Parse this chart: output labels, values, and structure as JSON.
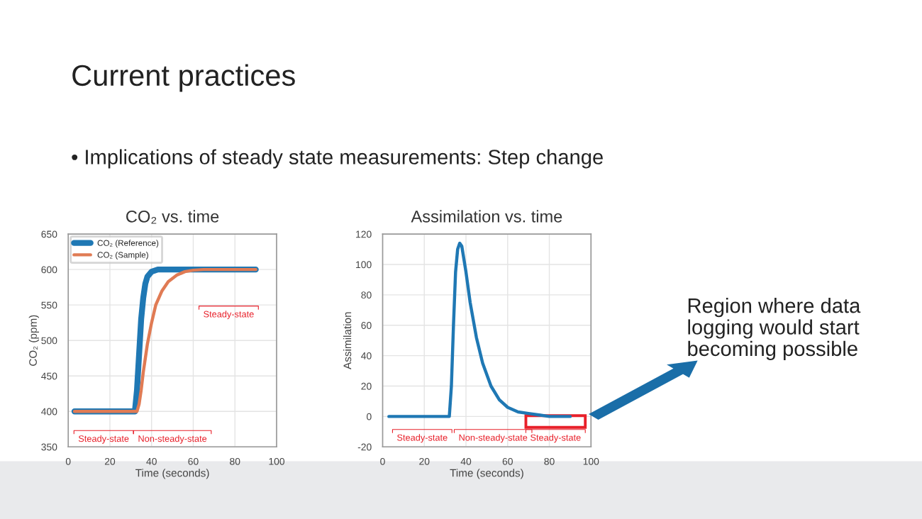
{
  "chart_data": [
    {
      "type": "line",
      "title": "CO₂ vs. time",
      "xlabel": "Time (seconds)",
      "ylabel": "CO₂ (ppm)",
      "xlim": [
        0,
        100
      ],
      "ylim": [
        350,
        650
      ],
      "xticks": [
        0,
        20,
        40,
        60,
        80,
        100
      ],
      "yticks": [
        350,
        400,
        450,
        500,
        550,
        600,
        650
      ],
      "grid": true,
      "legend": "top left",
      "series": [
        {
          "name": "CO₂ (Reference)",
          "color": "#1f78b4",
          "x": [
            3,
            32,
            33,
            34,
            35,
            36,
            37,
            38,
            40,
            43,
            90
          ],
          "values": [
            400,
            400,
            430,
            480,
            530,
            560,
            580,
            590,
            597,
            600,
            600
          ]
        },
        {
          "name": "CO₂ (Sample)",
          "color": "#e07b54",
          "x": [
            3,
            33,
            34,
            35,
            36,
            38,
            40,
            42,
            45,
            48,
            52,
            56,
            60,
            65,
            90
          ],
          "values": [
            400,
            400,
            410,
            430,
            455,
            495,
            525,
            550,
            570,
            583,
            592,
            597,
            599,
            600,
            600
          ]
        }
      ],
      "annotations": [
        "Current practices",
        "• Implications of steady state measurements: Step change",
        "Steady-state",
        "Non-steady-state",
        "Steady-state"
      ]
    },
    {
      "type": "line",
      "title": "Assimilation vs. time",
      "xlabel": "Time (seconds)",
      "ylabel": "Assimilation",
      "xlim": [
        0,
        100
      ],
      "ylim": [
        -20,
        120
      ],
      "xticks": [
        0,
        20,
        40,
        60,
        80,
        100
      ],
      "yticks": [
        -20,
        0,
        20,
        40,
        60,
        80,
        100,
        120
      ],
      "grid": true,
      "series": [
        {
          "color": "#1f78b4",
          "x": [
            3,
            32,
            33,
            34,
            35,
            36,
            37,
            38,
            40,
            42,
            45,
            48,
            52,
            56,
            60,
            65,
            70,
            75,
            80,
            90
          ],
          "values": [
            0,
            0,
            20,
            60,
            95,
            110,
            114,
            112,
            95,
            75,
            52,
            35,
            20,
            11,
            6,
            3,
            2,
            1,
            0,
            0
          ]
        }
      ],
      "annotations": [
        "Region where data\nlogging would start\nbecoming possible",
        "Steady-state",
        "Non-steady-state",
        "Steady-state"
      ]
    }
  ]
}
